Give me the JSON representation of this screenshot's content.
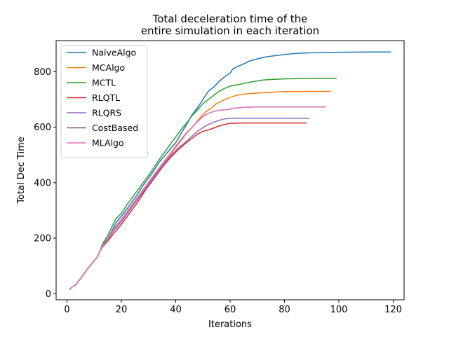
{
  "chart_data": {
    "type": "line",
    "title_lines": [
      "Total deceleration time of the",
      "entire simulation in each iteration"
    ],
    "xlabel": "Iterations",
    "ylabel": "Total Dec Time",
    "xlim": [
      -4,
      124
    ],
    "ylim": [
      -22,
      912
    ],
    "xticks": [
      0,
      20,
      40,
      60,
      80,
      100,
      120
    ],
    "yticks": [
      0,
      200,
      400,
      600,
      800
    ],
    "grid": false,
    "legend_position": "top-left",
    "series": [
      {
        "name": "NaiveAlgo",
        "color": "#1f77b4",
        "points": [
          [
            1,
            16
          ],
          [
            2,
            25
          ],
          [
            3,
            30
          ],
          [
            5,
            55
          ],
          [
            8,
            95
          ],
          [
            11,
            130
          ],
          [
            12,
            150
          ],
          [
            13,
            175
          ],
          [
            15,
            200
          ],
          [
            17,
            235
          ],
          [
            18,
            255
          ],
          [
            20,
            280
          ],
          [
            22,
            305
          ],
          [
            25,
            345
          ],
          [
            28,
            390
          ],
          [
            31,
            430
          ],
          [
            34,
            475
          ],
          [
            37,
            510
          ],
          [
            40,
            545
          ],
          [
            42,
            578
          ],
          [
            44,
            610
          ],
          [
            46,
            645
          ],
          [
            48,
            670
          ],
          [
            50,
            700
          ],
          [
            52,
            730
          ],
          [
            54,
            745
          ],
          [
            56,
            765
          ],
          [
            58,
            782
          ],
          [
            60,
            795
          ],
          [
            61,
            810
          ],
          [
            63,
            820
          ],
          [
            65,
            828
          ],
          [
            67,
            838
          ],
          [
            70,
            846
          ],
          [
            73,
            853
          ],
          [
            76,
            857
          ],
          [
            80,
            862
          ],
          [
            83,
            865
          ],
          [
            86,
            867
          ],
          [
            90,
            868
          ],
          [
            95,
            869
          ],
          [
            100,
            870
          ],
          [
            110,
            871
          ],
          [
            119,
            871
          ]
        ]
      },
      {
        "name": "MCAlgo",
        "color": "#ff7f0e",
        "points": [
          [
            1,
            16
          ],
          [
            2,
            25
          ],
          [
            3,
            30
          ],
          [
            5,
            55
          ],
          [
            8,
            95
          ],
          [
            11,
            130
          ],
          [
            12,
            150
          ],
          [
            13,
            170
          ],
          [
            15,
            195
          ],
          [
            17,
            225
          ],
          [
            20,
            265
          ],
          [
            23,
            305
          ],
          [
            26,
            345
          ],
          [
            29,
            385
          ],
          [
            32,
            425
          ],
          [
            35,
            460
          ],
          [
            38,
            500
          ],
          [
            41,
            540
          ],
          [
            44,
            578
          ],
          [
            47,
            610
          ],
          [
            49,
            635
          ],
          [
            51,
            655
          ],
          [
            53,
            668
          ],
          [
            55,
            685
          ],
          [
            57,
            695
          ],
          [
            60,
            708
          ],
          [
            63,
            716
          ],
          [
            66,
            720
          ],
          [
            70,
            723
          ],
          [
            75,
            726
          ],
          [
            80,
            728
          ],
          [
            90,
            729
          ],
          [
            97,
            729
          ]
        ]
      },
      {
        "name": "MCTL",
        "color": "#2ca02c",
        "points": [
          [
            1,
            16
          ],
          [
            2,
            25
          ],
          [
            3,
            30
          ],
          [
            5,
            55
          ],
          [
            8,
            95
          ],
          [
            11,
            130
          ],
          [
            12,
            150
          ],
          [
            13,
            178
          ],
          [
            15,
            210
          ],
          [
            17,
            250
          ],
          [
            18,
            270
          ],
          [
            20,
            290
          ],
          [
            22,
            320
          ],
          [
            25,
            360
          ],
          [
            28,
            400
          ],
          [
            31,
            440
          ],
          [
            34,
            485
          ],
          [
            37,
            525
          ],
          [
            40,
            565
          ],
          [
            42,
            592
          ],
          [
            44,
            615
          ],
          [
            46,
            642
          ],
          [
            48,
            662
          ],
          [
            50,
            685
          ],
          [
            52,
            700
          ],
          [
            54,
            715
          ],
          [
            56,
            730
          ],
          [
            58,
            740
          ],
          [
            60,
            748
          ],
          [
            62,
            752
          ],
          [
            64,
            755
          ],
          [
            66,
            760
          ],
          [
            69,
            765
          ],
          [
            72,
            770
          ],
          [
            75,
            772
          ],
          [
            80,
            774
          ],
          [
            85,
            775
          ],
          [
            90,
            776
          ],
          [
            99,
            776
          ]
        ]
      },
      {
        "name": "RLQTL",
        "color": "#d62728",
        "points": [
          [
            1,
            16
          ],
          [
            2,
            25
          ],
          [
            3,
            30
          ],
          [
            5,
            55
          ],
          [
            8,
            95
          ],
          [
            11,
            130
          ],
          [
            12,
            150
          ],
          [
            13,
            168
          ],
          [
            15,
            190
          ],
          [
            17,
            215
          ],
          [
            20,
            250
          ],
          [
            23,
            290
          ],
          [
            26,
            330
          ],
          [
            29,
            375
          ],
          [
            32,
            415
          ],
          [
            35,
            455
          ],
          [
            38,
            490
          ],
          [
            41,
            520
          ],
          [
            44,
            545
          ],
          [
            46,
            560
          ],
          [
            48,
            575
          ],
          [
            50,
            585
          ],
          [
            52,
            590
          ],
          [
            54,
            597
          ],
          [
            56,
            605
          ],
          [
            58,
            610
          ],
          [
            60,
            614
          ],
          [
            65,
            615
          ],
          [
            70,
            615
          ],
          [
            80,
            615
          ],
          [
            88,
            615
          ]
        ]
      },
      {
        "name": "RLQRS",
        "color": "#9467bd",
        "points": [
          [
            1,
            16
          ],
          [
            2,
            25
          ],
          [
            3,
            30
          ],
          [
            5,
            55
          ],
          [
            8,
            95
          ],
          [
            11,
            130
          ],
          [
            12,
            150
          ],
          [
            13,
            170
          ],
          [
            15,
            195
          ],
          [
            17,
            225
          ],
          [
            20,
            260
          ],
          [
            23,
            300
          ],
          [
            26,
            340
          ],
          [
            29,
            380
          ],
          [
            32,
            420
          ],
          [
            35,
            460
          ],
          [
            38,
            495
          ],
          [
            41,
            525
          ],
          [
            44,
            550
          ],
          [
            46,
            568
          ],
          [
            48,
            585
          ],
          [
            50,
            598
          ],
          [
            52,
            610
          ],
          [
            54,
            618
          ],
          [
            56,
            625
          ],
          [
            58,
            630
          ],
          [
            60,
            632
          ],
          [
            65,
            632
          ],
          [
            70,
            632
          ],
          [
            80,
            632
          ],
          [
            89,
            632
          ]
        ]
      },
      {
        "name": "CostBased",
        "color": "#8c564b",
        "points": [
          [
            1,
            16
          ],
          [
            2,
            25
          ],
          [
            3,
            30
          ],
          [
            5,
            55
          ],
          [
            8,
            95
          ],
          [
            11,
            130
          ],
          [
            12,
            150
          ],
          [
            13,
            172
          ],
          [
            15,
            198
          ],
          [
            17,
            230
          ],
          [
            20,
            268
          ],
          [
            23,
            308
          ],
          [
            26,
            348
          ],
          [
            29,
            388
          ],
          [
            32,
            428
          ],
          [
            35,
            468
          ],
          [
            38,
            505
          ],
          [
            41,
            545
          ],
          [
            44,
            580
          ],
          [
            46,
            600
          ],
          [
            48,
            620
          ],
          [
            50,
            638
          ],
          [
            52,
            650
          ],
          [
            54,
            657
          ],
          [
            56,
            661
          ],
          [
            58,
            663
          ],
          [
            60,
            665
          ],
          [
            62,
            669
          ],
          [
            64,
            671
          ],
          [
            66,
            672
          ],
          [
            70,
            673
          ],
          [
            80,
            673
          ],
          [
            95,
            673
          ]
        ]
      },
      {
        "name": "MLAlgo",
        "color": "#e377c2",
        "points": [
          [
            1,
            16
          ],
          [
            2,
            25
          ],
          [
            3,
            30
          ],
          [
            5,
            55
          ],
          [
            8,
            95
          ],
          [
            11,
            130
          ],
          [
            12,
            150
          ],
          [
            13,
            172
          ],
          [
            15,
            198
          ],
          [
            17,
            230
          ],
          [
            20,
            268
          ],
          [
            23,
            308
          ],
          [
            26,
            348
          ],
          [
            29,
            388
          ],
          [
            32,
            428
          ],
          [
            35,
            468
          ],
          [
            38,
            505
          ],
          [
            41,
            545
          ],
          [
            44,
            580
          ],
          [
            46,
            600
          ],
          [
            48,
            620
          ],
          [
            50,
            638
          ],
          [
            52,
            650
          ],
          [
            54,
            657
          ],
          [
            56,
            661
          ],
          [
            58,
            663
          ],
          [
            60,
            665
          ],
          [
            62,
            669
          ],
          [
            64,
            671
          ],
          [
            66,
            672
          ],
          [
            70,
            673
          ],
          [
            80,
            673
          ],
          [
            95,
            673
          ]
        ]
      }
    ]
  }
}
